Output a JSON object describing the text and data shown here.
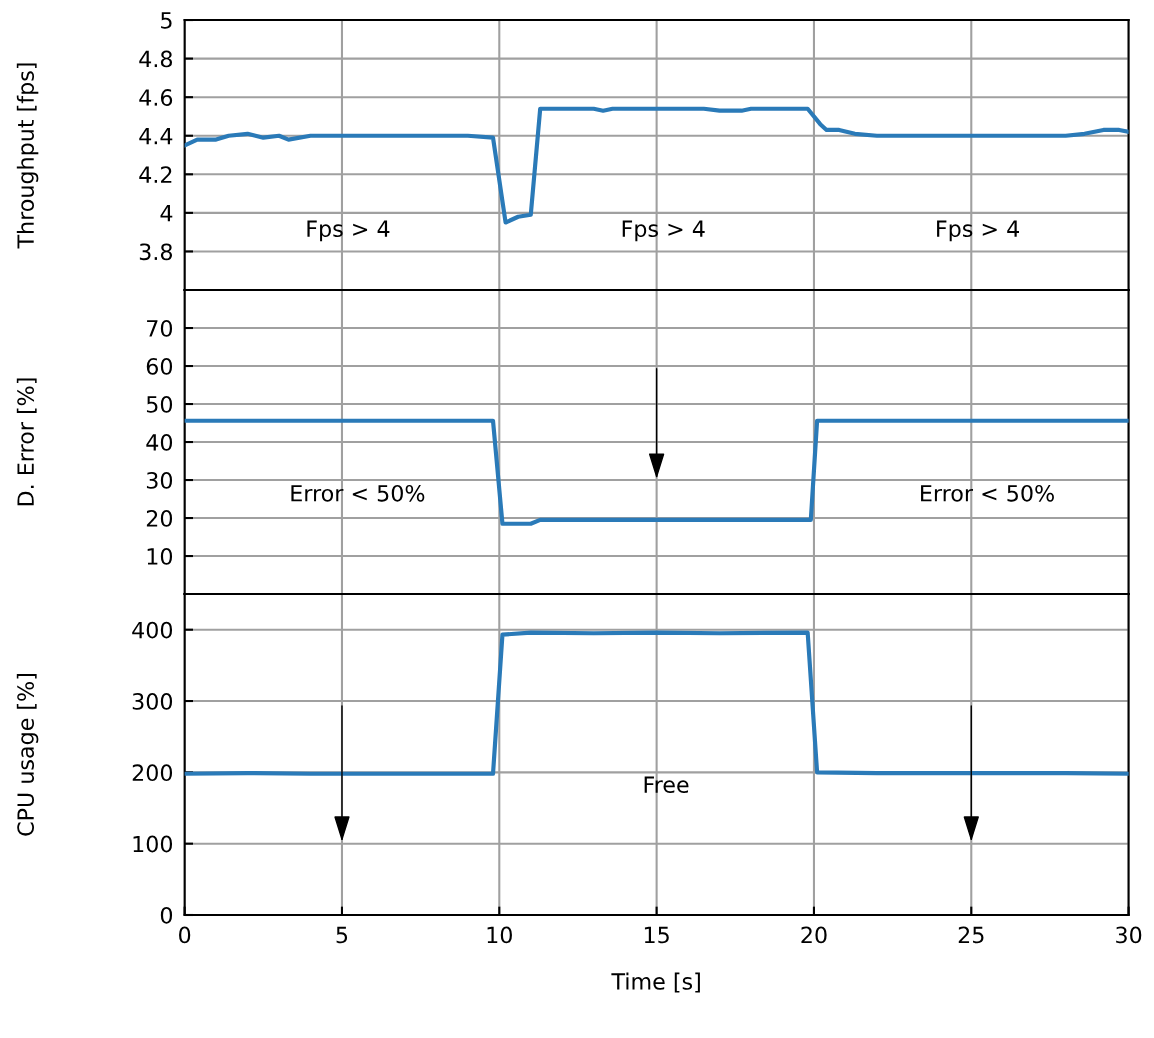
{
  "chart_data": [
    {
      "type": "line",
      "ylabel": "Throughput [fps]",
      "xlim": [
        0,
        30
      ],
      "xticks": [
        0,
        5,
        10,
        15,
        20,
        25,
        30
      ],
      "ylim": [
        3.6,
        5
      ],
      "yticks": [
        3.8,
        4,
        4.2,
        4.4,
        4.6,
        4.8,
        5
      ],
      "grid": true,
      "tick_labels": "y",
      "series": [
        {
          "color": "#2a7ab8",
          "x": [
            0,
            0.4,
            1,
            1.4,
            2,
            2.5,
            3,
            3.3,
            4,
            5,
            6,
            7,
            8,
            9,
            9.8,
            10.2,
            10.6,
            11,
            11.3,
            13,
            13.3,
            13.6,
            16.5,
            17,
            17.7,
            18,
            19.8,
            20.2,
            20.4,
            20.8,
            21.3,
            22,
            25,
            28,
            28.6,
            29.2,
            29.7,
            30
          ],
          "values": [
            4.35,
            4.38,
            4.38,
            4.4,
            4.41,
            4.39,
            4.4,
            4.38,
            4.4,
            4.4,
            4.4,
            4.4,
            4.4,
            4.4,
            4.39,
            3.95,
            3.98,
            3.99,
            4.54,
            4.54,
            4.53,
            4.54,
            4.54,
            4.53,
            4.53,
            4.54,
            4.54,
            4.46,
            4.43,
            4.43,
            4.41,
            4.4,
            4.4,
            4.4,
            4.41,
            4.43,
            4.43,
            4.42
          ]
        }
      ],
      "annotations": [
        "Fps > 4",
        "Fps > 4",
        "Fps > 4"
      ]
    },
    {
      "type": "line",
      "ylabel": "D. Error [%]",
      "xlim": [
        0,
        30
      ],
      "xticks": [
        0,
        5,
        10,
        15,
        20,
        25,
        30
      ],
      "ylim": [
        0,
        80
      ],
      "yticks": [
        10,
        20,
        30,
        40,
        50,
        60,
        70
      ],
      "grid": true,
      "tick_labels": "y",
      "series": [
        {
          "color": "#2a7ab8",
          "x": [
            0,
            9.8,
            10.1,
            11,
            11.3,
            19.9,
            20.1,
            30
          ],
          "values": [
            45.6,
            45.6,
            18.5,
            18.5,
            19.5,
            19.5,
            45.6,
            45.6
          ]
        }
      ],
      "annotations": [
        "Error < 50%",
        "Error < 50%"
      ]
    },
    {
      "type": "line",
      "ylabel": "CPU usage [%]",
      "xlabel": "Time [s]",
      "xlim": [
        0,
        30
      ],
      "xticks": [
        0,
        5,
        10,
        15,
        20,
        25,
        30
      ],
      "ylim": [
        0,
        450
      ],
      "yticks": [
        0,
        100,
        200,
        300,
        400
      ],
      "grid": true,
      "series": [
        {
          "color": "#2a7ab8",
          "x": [
            0,
            2,
            4,
            6,
            8,
            9.8,
            10.1,
            11,
            13,
            15,
            17,
            19.8,
            20.1,
            22,
            25,
            28,
            30
          ],
          "values": [
            198,
            199,
            198,
            198,
            198,
            198,
            393,
            396,
            395,
            396,
            395,
            396,
            200,
            199,
            199,
            199,
            198
          ]
        }
      ],
      "annotations": [
        "Free"
      ]
    }
  ]
}
